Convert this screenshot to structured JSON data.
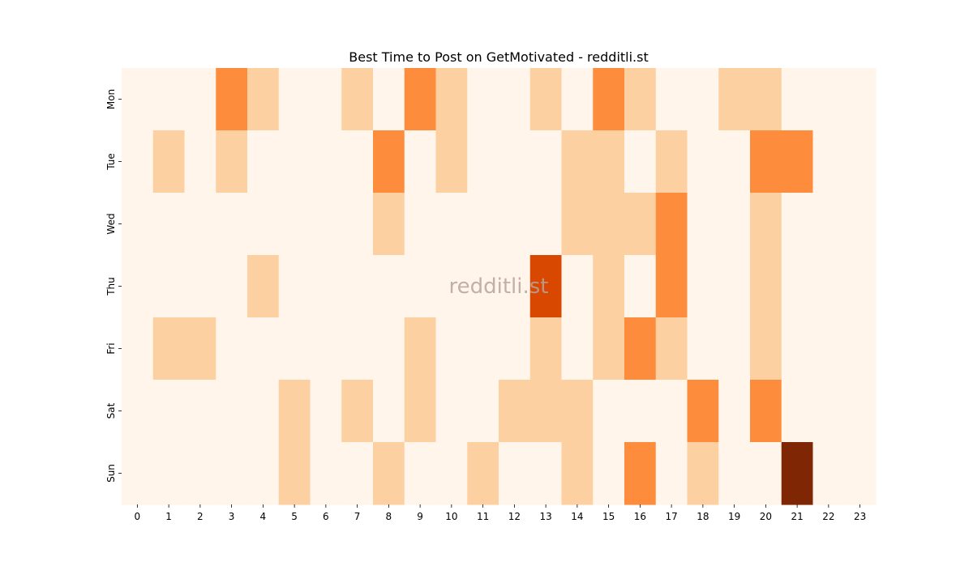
{
  "chart_data": {
    "type": "heatmap",
    "title": "Best Time to Post on GetMotivated - redditli.st",
    "xlabel": "",
    "ylabel": "",
    "x": [
      "0",
      "1",
      "2",
      "3",
      "4",
      "5",
      "6",
      "7",
      "8",
      "9",
      "10",
      "11",
      "12",
      "13",
      "14",
      "15",
      "16",
      "17",
      "18",
      "19",
      "20",
      "21",
      "22",
      "23"
    ],
    "y": [
      "Mon",
      "Tue",
      "Wed",
      "Thu",
      "Fri",
      "Sat",
      "Sun"
    ],
    "values": [
      [
        0,
        0,
        0,
        2,
        1,
        0,
        0,
        1,
        0,
        2,
        1,
        0,
        0,
        1,
        0,
        2,
        1,
        0,
        0,
        1,
        1,
        0,
        0,
        0
      ],
      [
        0,
        1,
        0,
        1,
        0,
        0,
        0,
        0,
        2,
        0,
        1,
        0,
        0,
        0,
        1,
        1,
        0,
        1,
        0,
        0,
        2,
        2,
        0,
        0
      ],
      [
        0,
        0,
        0,
        0,
        0,
        0,
        0,
        0,
        1,
        0,
        0,
        0,
        0,
        0,
        1,
        1,
        1,
        2,
        0,
        0,
        1,
        0,
        0,
        0
      ],
      [
        0,
        0,
        0,
        0,
        1,
        0,
        0,
        0,
        0,
        0,
        0,
        0,
        0,
        3,
        0,
        1,
        0,
        2,
        0,
        0,
        1,
        0,
        0,
        0
      ],
      [
        0,
        1,
        1,
        0,
        0,
        0,
        0,
        0,
        0,
        1,
        0,
        0,
        0,
        1,
        0,
        1,
        2,
        1,
        0,
        0,
        1,
        0,
        0,
        0
      ],
      [
        0,
        0,
        0,
        0,
        0,
        1,
        0,
        1,
        0,
        1,
        0,
        0,
        1,
        1,
        1,
        0,
        0,
        0,
        2,
        0,
        2,
        0,
        0,
        0
      ],
      [
        0,
        0,
        0,
        0,
        0,
        1,
        0,
        0,
        1,
        0,
        0,
        1,
        0,
        0,
        1,
        0,
        2,
        0,
        1,
        0,
        0,
        4,
        0,
        0
      ]
    ],
    "colormap": "Oranges",
    "level_colors": [
      "#fff5eb",
      "#fdd0a2",
      "#fd8d3c",
      "#d94801",
      "#7f2704"
    ],
    "colorbar": false,
    "grid": false,
    "watermark": "redditli.st"
  }
}
